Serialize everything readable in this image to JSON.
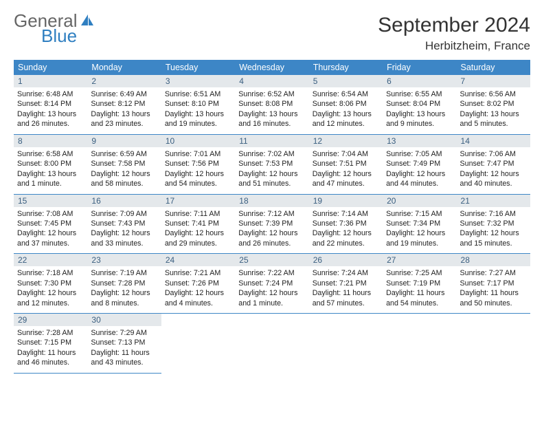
{
  "logo": {
    "word1": "General",
    "word2": "Blue"
  },
  "title": "September 2024",
  "location": "Herbitzheim, France",
  "colors": {
    "header_bg": "#3d86c6",
    "header_text": "#ffffff",
    "daynum_bg": "#e4e8eb",
    "daynum_text": "#3b5f80",
    "row_divider": "#3d86c6",
    "logo_accent": "#2f7fc1"
  },
  "dow": [
    "Sunday",
    "Monday",
    "Tuesday",
    "Wednesday",
    "Thursday",
    "Friday",
    "Saturday"
  ],
  "weeks": [
    [
      {
        "n": "1",
        "sunrise": "6:48 AM",
        "sunset": "8:14 PM",
        "daylight": "13 hours and 26 minutes."
      },
      {
        "n": "2",
        "sunrise": "6:49 AM",
        "sunset": "8:12 PM",
        "daylight": "13 hours and 23 minutes."
      },
      {
        "n": "3",
        "sunrise": "6:51 AM",
        "sunset": "8:10 PM",
        "daylight": "13 hours and 19 minutes."
      },
      {
        "n": "4",
        "sunrise": "6:52 AM",
        "sunset": "8:08 PM",
        "daylight": "13 hours and 16 minutes."
      },
      {
        "n": "5",
        "sunrise": "6:54 AM",
        "sunset": "8:06 PM",
        "daylight": "13 hours and 12 minutes."
      },
      {
        "n": "6",
        "sunrise": "6:55 AM",
        "sunset": "8:04 PM",
        "daylight": "13 hours and 9 minutes."
      },
      {
        "n": "7",
        "sunrise": "6:56 AM",
        "sunset": "8:02 PM",
        "daylight": "13 hours and 5 minutes."
      }
    ],
    [
      {
        "n": "8",
        "sunrise": "6:58 AM",
        "sunset": "8:00 PM",
        "daylight": "13 hours and 1 minute."
      },
      {
        "n": "9",
        "sunrise": "6:59 AM",
        "sunset": "7:58 PM",
        "daylight": "12 hours and 58 minutes."
      },
      {
        "n": "10",
        "sunrise": "7:01 AM",
        "sunset": "7:56 PM",
        "daylight": "12 hours and 54 minutes."
      },
      {
        "n": "11",
        "sunrise": "7:02 AM",
        "sunset": "7:53 PM",
        "daylight": "12 hours and 51 minutes."
      },
      {
        "n": "12",
        "sunrise": "7:04 AM",
        "sunset": "7:51 PM",
        "daylight": "12 hours and 47 minutes."
      },
      {
        "n": "13",
        "sunrise": "7:05 AM",
        "sunset": "7:49 PM",
        "daylight": "12 hours and 44 minutes."
      },
      {
        "n": "14",
        "sunrise": "7:06 AM",
        "sunset": "7:47 PM",
        "daylight": "12 hours and 40 minutes."
      }
    ],
    [
      {
        "n": "15",
        "sunrise": "7:08 AM",
        "sunset": "7:45 PM",
        "daylight": "12 hours and 37 minutes."
      },
      {
        "n": "16",
        "sunrise": "7:09 AM",
        "sunset": "7:43 PM",
        "daylight": "12 hours and 33 minutes."
      },
      {
        "n": "17",
        "sunrise": "7:11 AM",
        "sunset": "7:41 PM",
        "daylight": "12 hours and 29 minutes."
      },
      {
        "n": "18",
        "sunrise": "7:12 AM",
        "sunset": "7:39 PM",
        "daylight": "12 hours and 26 minutes."
      },
      {
        "n": "19",
        "sunrise": "7:14 AM",
        "sunset": "7:36 PM",
        "daylight": "12 hours and 22 minutes."
      },
      {
        "n": "20",
        "sunrise": "7:15 AM",
        "sunset": "7:34 PM",
        "daylight": "12 hours and 19 minutes."
      },
      {
        "n": "21",
        "sunrise": "7:16 AM",
        "sunset": "7:32 PM",
        "daylight": "12 hours and 15 minutes."
      }
    ],
    [
      {
        "n": "22",
        "sunrise": "7:18 AM",
        "sunset": "7:30 PM",
        "daylight": "12 hours and 12 minutes."
      },
      {
        "n": "23",
        "sunrise": "7:19 AM",
        "sunset": "7:28 PM",
        "daylight": "12 hours and 8 minutes."
      },
      {
        "n": "24",
        "sunrise": "7:21 AM",
        "sunset": "7:26 PM",
        "daylight": "12 hours and 4 minutes."
      },
      {
        "n": "25",
        "sunrise": "7:22 AM",
        "sunset": "7:24 PM",
        "daylight": "12 hours and 1 minute."
      },
      {
        "n": "26",
        "sunrise": "7:24 AM",
        "sunset": "7:21 PM",
        "daylight": "11 hours and 57 minutes."
      },
      {
        "n": "27",
        "sunrise": "7:25 AM",
        "sunset": "7:19 PM",
        "daylight": "11 hours and 54 minutes."
      },
      {
        "n": "28",
        "sunrise": "7:27 AM",
        "sunset": "7:17 PM",
        "daylight": "11 hours and 50 minutes."
      }
    ],
    [
      {
        "n": "29",
        "sunrise": "7:28 AM",
        "sunset": "7:15 PM",
        "daylight": "11 hours and 46 minutes."
      },
      {
        "n": "30",
        "sunrise": "7:29 AM",
        "sunset": "7:13 PM",
        "daylight": "11 hours and 43 minutes."
      },
      null,
      null,
      null,
      null,
      null
    ]
  ],
  "labels": {
    "sunrise_prefix": "Sunrise: ",
    "sunset_prefix": "Sunset: ",
    "daylight_prefix": "Daylight: "
  }
}
